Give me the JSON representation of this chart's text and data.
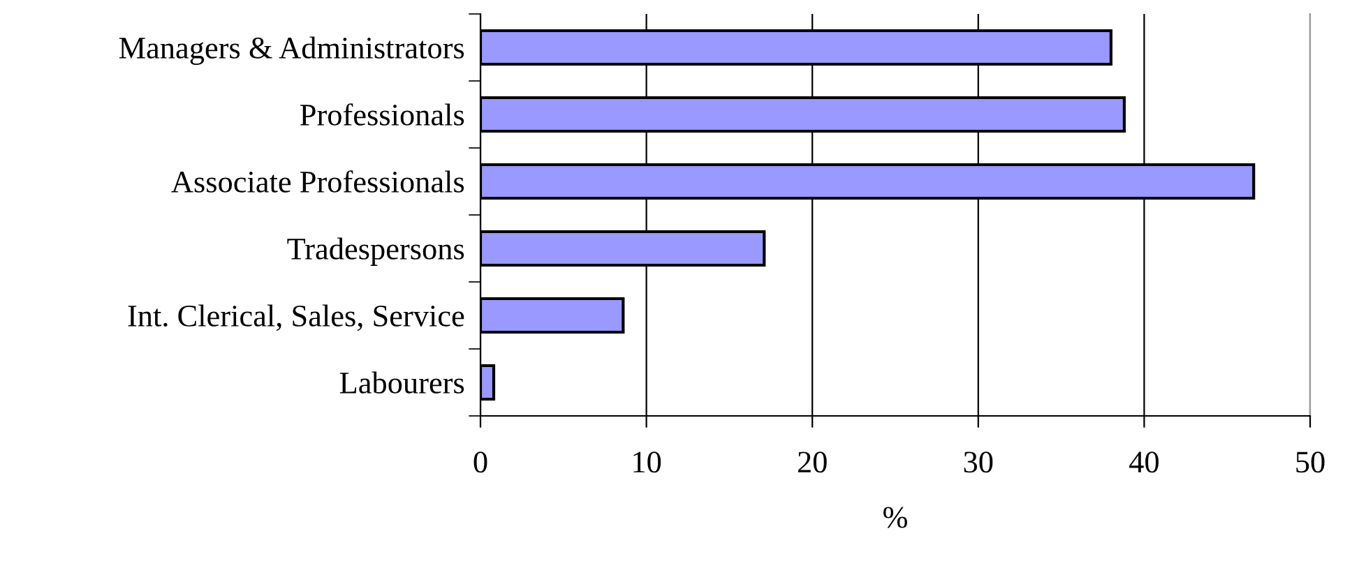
{
  "chart_data": {
    "type": "bar",
    "orientation": "horizontal",
    "xlabel": "%",
    "categories": [
      "Managers & Administrators",
      "Professionals",
      "Associate Professionals",
      "Tradespersons",
      "Int. Clerical, Sales, Service",
      "Labourers"
    ],
    "values": [
      38.0,
      38.8,
      46.6,
      17.1,
      8.6,
      0.8
    ],
    "color": "#9999ff",
    "xlim": [
      0,
      50
    ],
    "xticks": [
      0,
      10,
      20,
      30,
      40,
      50
    ],
    "grid": "x"
  }
}
